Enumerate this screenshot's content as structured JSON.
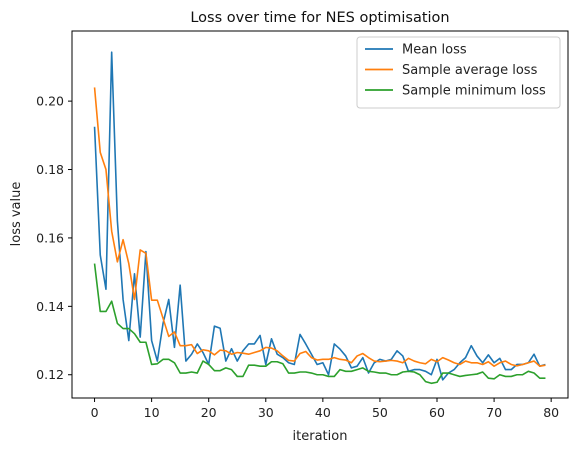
{
  "chart_data": {
    "type": "line",
    "title": "Loss over time for NES optimisation",
    "xlabel": "iteration",
    "ylabel": "loss value",
    "xlim": [
      -3.95,
      82.95
    ],
    "ylim": [
      0.1132,
      0.2205
    ],
    "xticks": [
      0,
      10,
      20,
      30,
      40,
      50,
      60,
      70,
      80
    ],
    "yticks": [
      0.12,
      0.14,
      0.16,
      0.18,
      0.2
    ],
    "ytick_labels": [
      "0.12",
      "0.14",
      "0.16",
      "0.18",
      "0.20"
    ],
    "grid": false,
    "legend_position": "top-right",
    "x": [
      0,
      1,
      2,
      3,
      4,
      5,
      6,
      7,
      8,
      9,
      10,
      11,
      12,
      13,
      14,
      15,
      16,
      17,
      18,
      19,
      20,
      21,
      22,
      23,
      24,
      25,
      26,
      27,
      28,
      29,
      30,
      31,
      32,
      33,
      34,
      35,
      36,
      37,
      38,
      39,
      40,
      41,
      42,
      43,
      44,
      45,
      46,
      47,
      48,
      49,
      50,
      51,
      52,
      53,
      54,
      55,
      56,
      57,
      58,
      59,
      60,
      61,
      62,
      63,
      64,
      65,
      66,
      67,
      68,
      69,
      70,
      71,
      72,
      73,
      74,
      75,
      76,
      77,
      78,
      79
    ],
    "series": [
      {
        "name": "Mean loss",
        "color": "#1f77b4",
        "values": [
          0.1925,
          0.155,
          0.145,
          0.2143,
          0.165,
          0.142,
          0.13,
          0.1495,
          0.131,
          0.156,
          0.13,
          0.124,
          0.135,
          0.142,
          0.128,
          0.1462,
          0.124,
          0.126,
          0.129,
          0.1265,
          0.123,
          0.1342,
          0.1336,
          0.124,
          0.1276,
          0.124,
          0.127,
          0.129,
          0.129,
          0.1315,
          0.123,
          0.1305,
          0.126,
          0.125,
          0.1235,
          0.123,
          0.1318,
          0.129,
          0.126,
          0.123,
          0.1235,
          0.12,
          0.129,
          0.1275,
          0.1255,
          0.122,
          0.1225,
          0.125,
          0.1205,
          0.1235,
          0.1245,
          0.124,
          0.1245,
          0.127,
          0.1255,
          0.121,
          0.1215,
          0.1215,
          0.121,
          0.12,
          0.1245,
          0.1185,
          0.1205,
          0.1215,
          0.1235,
          0.125,
          0.1285,
          0.1255,
          0.1235,
          0.1258,
          0.1235,
          0.1248,
          0.1215,
          0.1215,
          0.123,
          0.123,
          0.1235,
          0.126,
          0.1225,
          0.123
        ]
      },
      {
        "name": "Sample average loss",
        "color": "#ff7f0e",
        "values": [
          0.204,
          0.185,
          0.18,
          0.162,
          0.153,
          0.1595,
          0.1525,
          0.142,
          0.1565,
          0.1555,
          0.1418,
          0.1418,
          0.1365,
          0.1312,
          0.1325,
          0.1285,
          0.1285,
          0.1288,
          0.1262,
          0.1273,
          0.127,
          0.1258,
          0.1272,
          0.127,
          0.126,
          0.1265,
          0.1263,
          0.126,
          0.1265,
          0.127,
          0.128,
          0.1278,
          0.127,
          0.1255,
          0.1242,
          0.124,
          0.1262,
          0.1268,
          0.125,
          0.1243,
          0.1245,
          0.1245,
          0.125,
          0.1245,
          0.1243,
          0.1235,
          0.1255,
          0.1262,
          0.125,
          0.124,
          0.1238,
          0.124,
          0.1242,
          0.124,
          0.1235,
          0.1248,
          0.124,
          0.1235,
          0.1232,
          0.1245,
          0.1238,
          0.125,
          0.1243,
          0.1235,
          0.123,
          0.124,
          0.1235,
          0.1235,
          0.123,
          0.1238,
          0.1225,
          0.1235,
          0.124,
          0.123,
          0.1226,
          0.123,
          0.1235,
          0.124,
          0.1225,
          0.1228
        ]
      },
      {
        "name": "Sample minimum loss",
        "color": "#2ca02c",
        "values": [
          0.1525,
          0.1385,
          0.1385,
          0.1415,
          0.135,
          0.1335,
          0.1335,
          0.132,
          0.1295,
          0.1295,
          0.123,
          0.1232,
          0.1245,
          0.1245,
          0.1235,
          0.1205,
          0.1205,
          0.1208,
          0.1205,
          0.124,
          0.123,
          0.1212,
          0.1212,
          0.122,
          0.1215,
          0.1195,
          0.1195,
          0.1228,
          0.1228,
          0.1225,
          0.1225,
          0.1238,
          0.1238,
          0.1232,
          0.1205,
          0.1205,
          0.1208,
          0.1208,
          0.1205,
          0.12,
          0.12,
          0.1195,
          0.1195,
          0.1215,
          0.121,
          0.121,
          0.1215,
          0.122,
          0.121,
          0.1208,
          0.1205,
          0.1205,
          0.12,
          0.12,
          0.1208,
          0.121,
          0.1208,
          0.12,
          0.118,
          0.1175,
          0.1178,
          0.1205,
          0.1205,
          0.12,
          0.1195,
          0.1198,
          0.12,
          0.1202,
          0.1208,
          0.119,
          0.1188,
          0.12,
          0.1195,
          0.1195,
          0.12,
          0.12,
          0.121,
          0.1205,
          0.119,
          0.119
        ]
      }
    ]
  }
}
